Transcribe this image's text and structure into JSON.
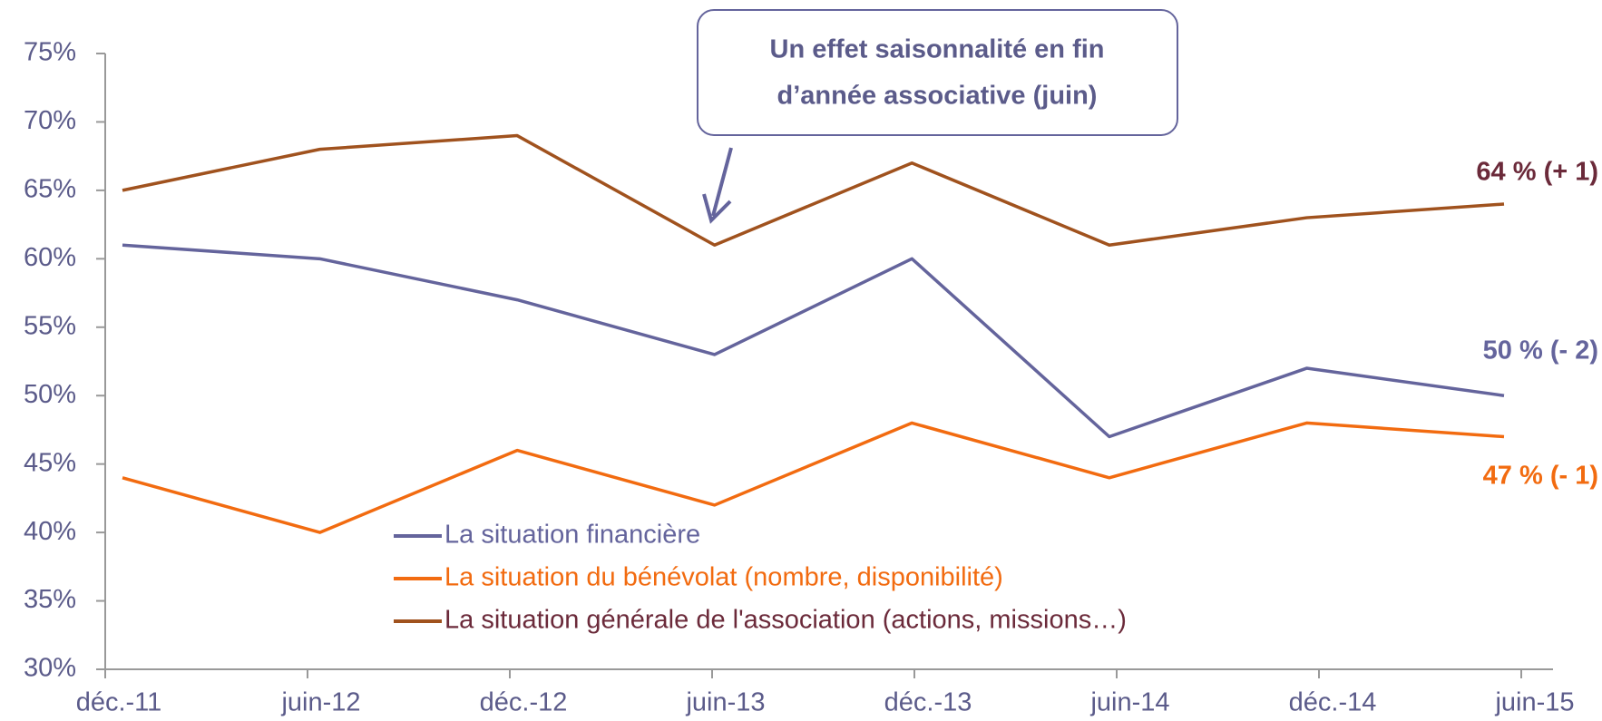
{
  "chart_data": {
    "type": "line",
    "categories": [
      "déc.-11",
      "juin-12",
      "déc.-12",
      "juin-13",
      "déc.-13",
      "juin-14",
      "déc.-14",
      "juin-15"
    ],
    "series": [
      {
        "name": "La situation financière",
        "color": "#64649c",
        "values": [
          61,
          60,
          57,
          53,
          60,
          47,
          52,
          50
        ]
      },
      {
        "name": "La situation du bénévolat (nombre, disponibilité)",
        "color": "#f26b10",
        "values": [
          44,
          40,
          46,
          42,
          48,
          44,
          48,
          47
        ]
      },
      {
        "name": "La situation générale de l'association (actions, missions…)",
        "color": "#a0521e",
        "values": [
          65,
          68,
          69,
          61,
          67,
          61,
          63,
          64
        ]
      }
    ],
    "ylim": [
      30,
      75
    ],
    "yticks": [
      {
        "value": 30,
        "label": "30%"
      },
      {
        "value": 35,
        "label": "35%"
      },
      {
        "value": 40,
        "label": "40%"
      },
      {
        "value": 45,
        "label": "45%"
      },
      {
        "value": 50,
        "label": "50%"
      },
      {
        "value": 55,
        "label": "55%"
      },
      {
        "value": 60,
        "label": "60%"
      },
      {
        "value": 65,
        "label": "65%"
      },
      {
        "value": 70,
        "label": "70%"
      },
      {
        "value": 75,
        "label": "75%"
      }
    ],
    "end_labels": [
      "50 % (- 2)",
      "47 % (- 1)",
      "64 % (+ 1)"
    ],
    "callout": [
      "Un effet saisonnalité en fin",
      "d’année associative (juin)"
    ]
  }
}
